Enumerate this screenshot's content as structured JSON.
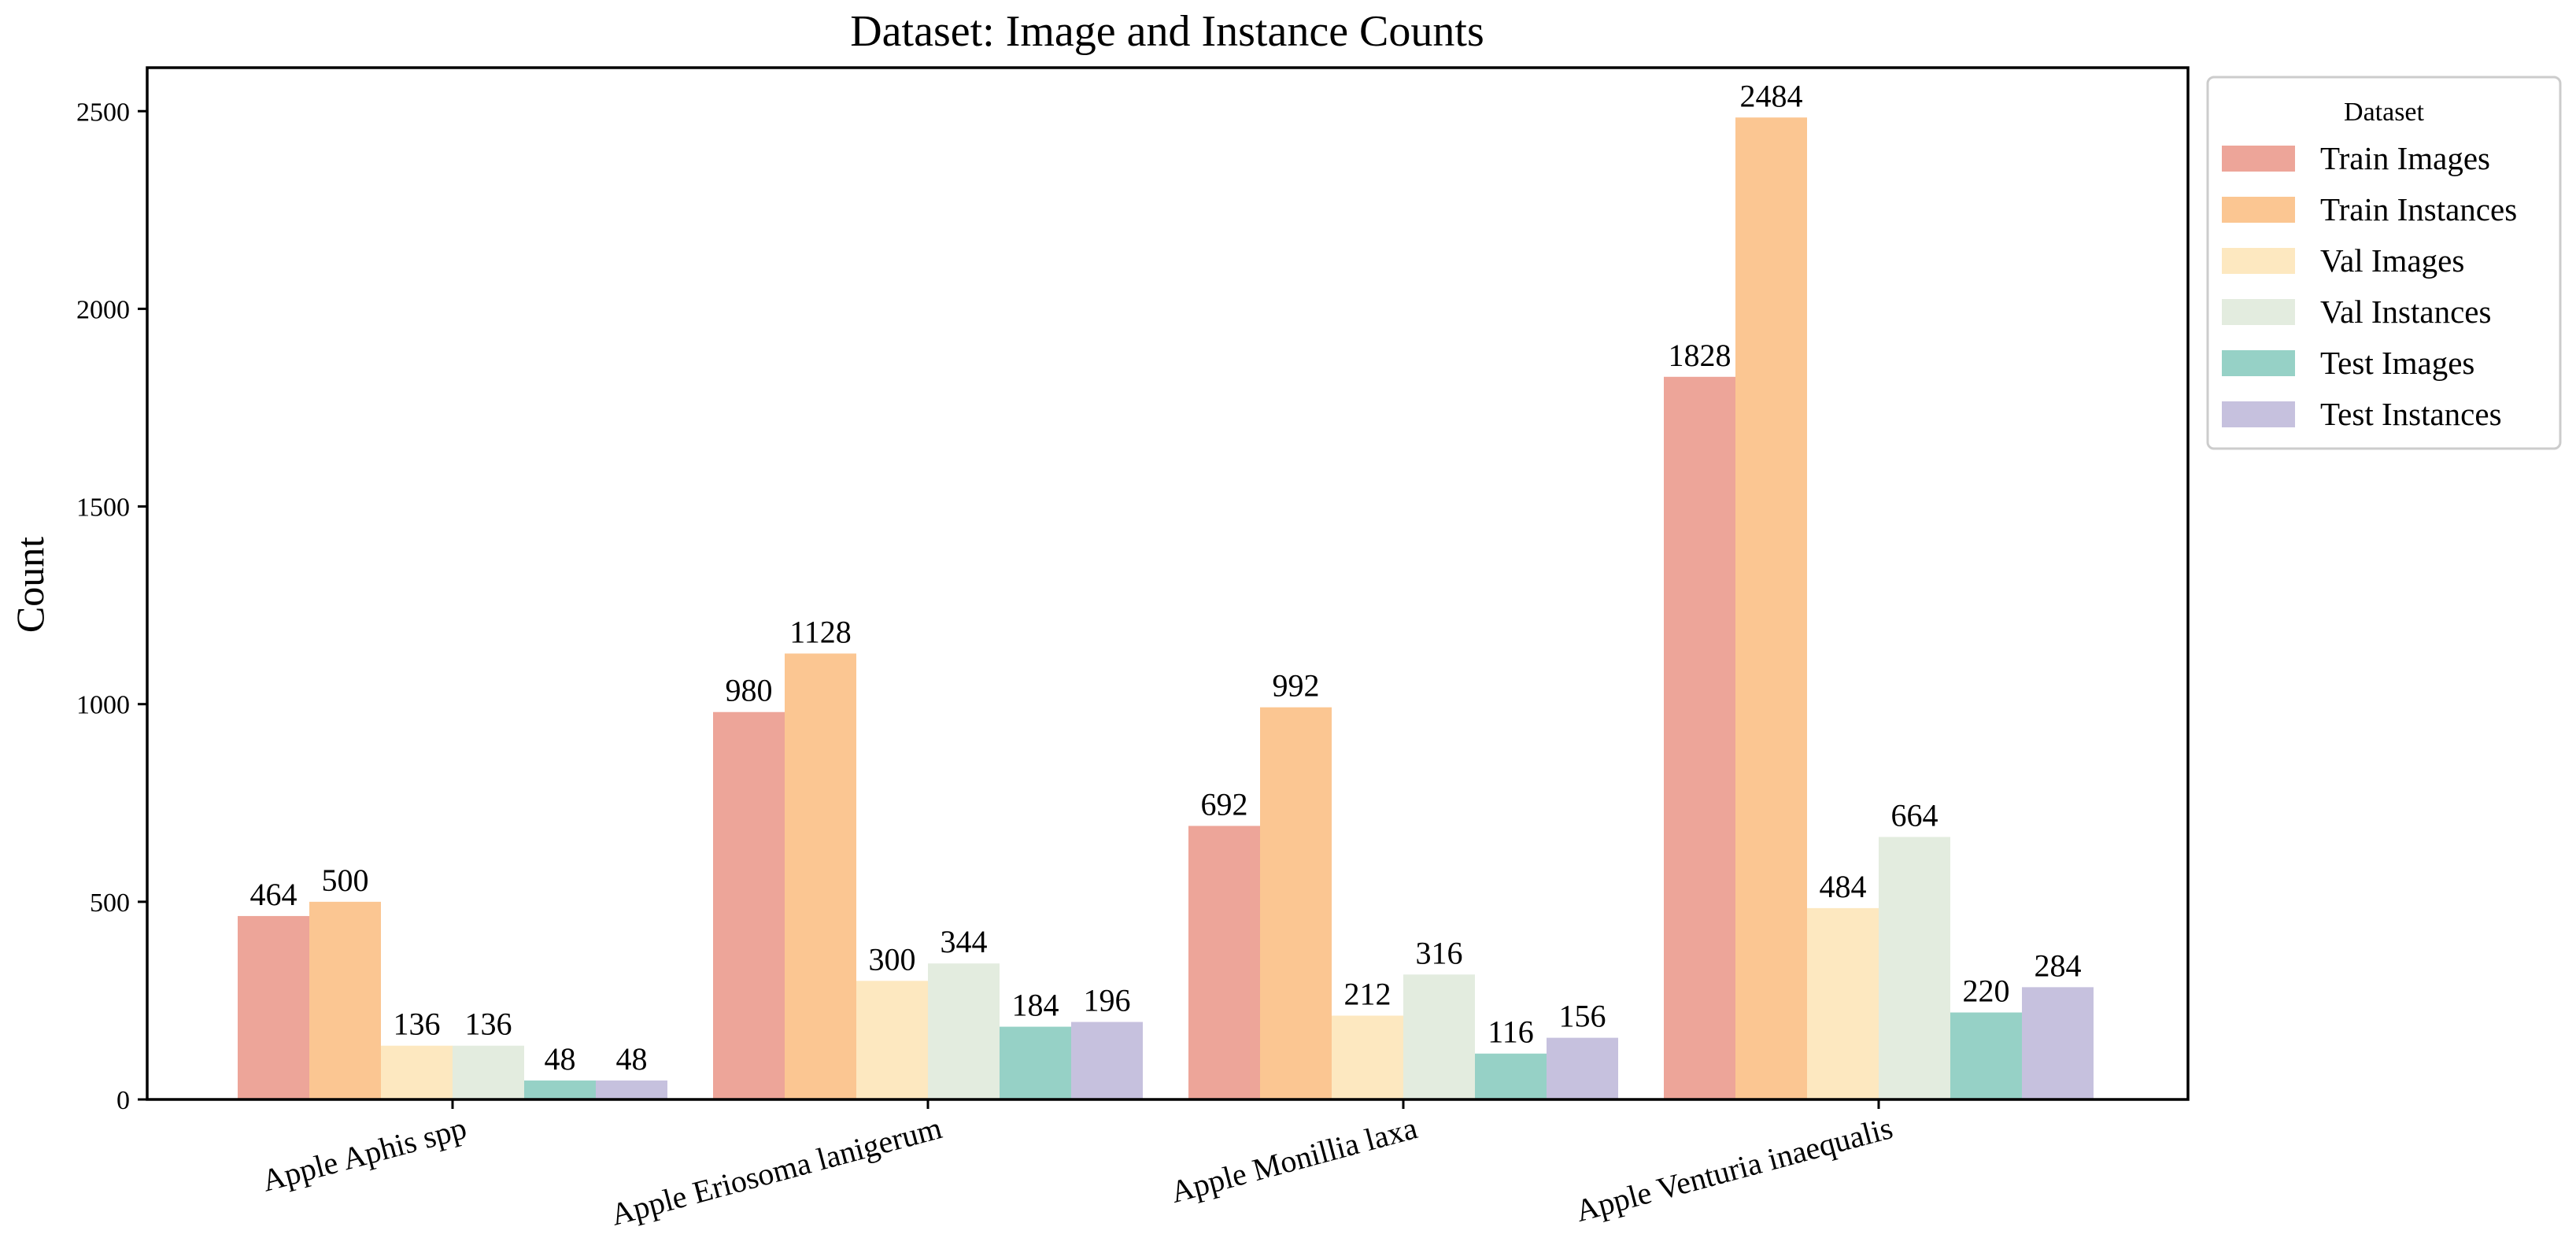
{
  "chart_data": {
    "type": "bar",
    "title": "Dataset: Image and Instance Counts",
    "xlabel": "",
    "ylabel": "Count",
    "ylim": [
      0,
      2610
    ],
    "yticks": [
      0,
      500,
      1000,
      1500,
      2000,
      2500
    ],
    "grid": false,
    "legend": {
      "title": "Dataset",
      "placement": "outside-top-right"
    },
    "categories": [
      "Apple Aphis spp",
      "Apple Eriosoma lanigerum",
      "Apple Monillia laxa",
      "Apple Venturia inaequalis"
    ],
    "series": [
      {
        "name": "Train Images",
        "color": "#eda599",
        "values": [
          464,
          980,
          692,
          1828
        ]
      },
      {
        "name": "Train Instances",
        "color": "#fbc692",
        "values": [
          500,
          1128,
          992,
          2484
        ]
      },
      {
        "name": "Val Images",
        "color": "#fde8c0",
        "values": [
          136,
          300,
          212,
          484
        ]
      },
      {
        "name": "Val Instances",
        "color": "#e3ecdf",
        "values": [
          136,
          344,
          316,
          664
        ]
      },
      {
        "name": "Test Images",
        "color": "#96d1c6",
        "values": [
          48,
          184,
          116,
          220
        ]
      },
      {
        "name": "Test Instances",
        "color": "#c6c1de",
        "values": [
          48,
          196,
          156,
          284
        ]
      }
    ]
  }
}
